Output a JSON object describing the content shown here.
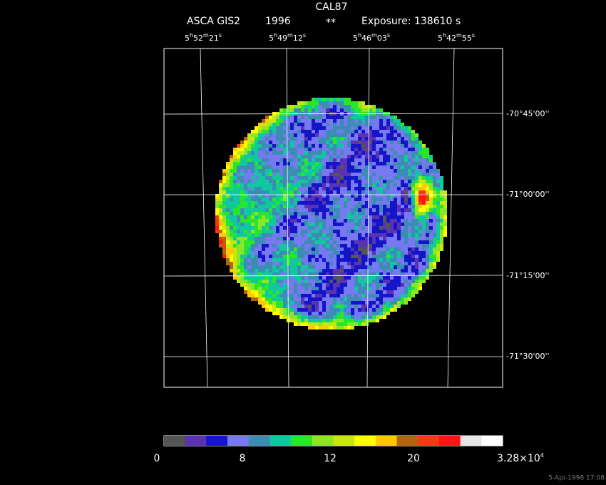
{
  "header": {
    "title": "CAL87",
    "instrument": "ASCA GIS2",
    "year": "1996",
    "marker": "**",
    "exposure": "Exposure: 138610 s"
  },
  "ra_labels": [
    [
      "5",
      "h",
      "52",
      "m",
      "21",
      "s"
    ],
    [
      "5",
      "h",
      "49",
      "m",
      "12",
      "s"
    ],
    [
      "5",
      "h",
      "46",
      "m",
      "03",
      "s"
    ],
    [
      "5",
      "h",
      "42",
      "m",
      "55",
      "s"
    ]
  ],
  "dec_labels": [
    "-70°45'00''",
    "-71°00'00''",
    "-71°15'00''",
    "-71°30'00''"
  ],
  "colorbar": {
    "colors": [
      "#555555",
      "#5a32b4",
      "#1414c8",
      "#7878f0",
      "#3c8cb4",
      "#10c8a0",
      "#28e628",
      "#8ce628",
      "#c8e614",
      "#ffff00",
      "#ffc800",
      "#b4640a",
      "#f03c14",
      "#ff1414",
      "#e6e6e6",
      "#ffffff"
    ],
    "labels": [
      [
        "0"
      ],
      [
        "8"
      ],
      [
        "12"
      ],
      [
        "20"
      ],
      [
        "3.28×10",
        "4"
      ]
    ]
  },
  "footer": "5-Apr-1998 17:08"
}
